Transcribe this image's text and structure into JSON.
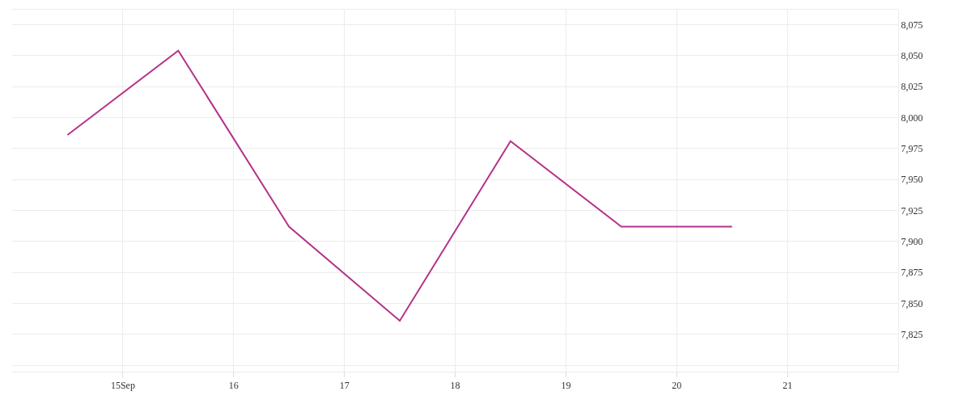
{
  "chart_data": {
    "type": "line",
    "x": [
      "--09-14T12:00",
      "--09-15T12:00",
      "--09-16T12:00",
      "--09-17T12:00",
      "--09-18T12:00",
      "--09-19T12:00",
      "--09-20T12:00"
    ],
    "series": [
      {
        "color": "#b5338a",
        "values": [
          7986,
          8054,
          7912,
          7836,
          7981,
          7912,
          7912
        ]
      }
    ],
    "xlim": [
      "--09-14",
      "--09-22"
    ],
    "xticks": [
      {
        "value": "--09-15",
        "label": "15Sep"
      },
      {
        "value": "--09-16",
        "label": "16"
      },
      {
        "value": "--09-17",
        "label": "17"
      },
      {
        "value": "--09-18",
        "label": "18"
      },
      {
        "value": "--09-19",
        "label": "19"
      },
      {
        "value": "--09-20",
        "label": "20"
      },
      {
        "value": "--09-21",
        "label": "21"
      }
    ],
    "ylim": [
      7795,
      8087
    ],
    "yticks": [
      {
        "value": 7800,
        "label": null
      },
      {
        "value": 7825,
        "label": "7,825"
      },
      {
        "value": 7850,
        "label": "7,850"
      },
      {
        "value": 7875,
        "label": "7,875"
      },
      {
        "value": 7900,
        "label": "7,900"
      },
      {
        "value": 7925,
        "label": "7,925"
      },
      {
        "value": 7950,
        "label": "7,950"
      },
      {
        "value": 7975,
        "label": "7,975"
      },
      {
        "value": 8000,
        "label": "8,000"
      },
      {
        "value": 8025,
        "label": "8,025"
      },
      {
        "value": 8050,
        "label": "8,050"
      },
      {
        "value": 8075,
        "label": "8,075"
      }
    ],
    "grid": true,
    "marker": "none",
    "line_style": "solid"
  }
}
